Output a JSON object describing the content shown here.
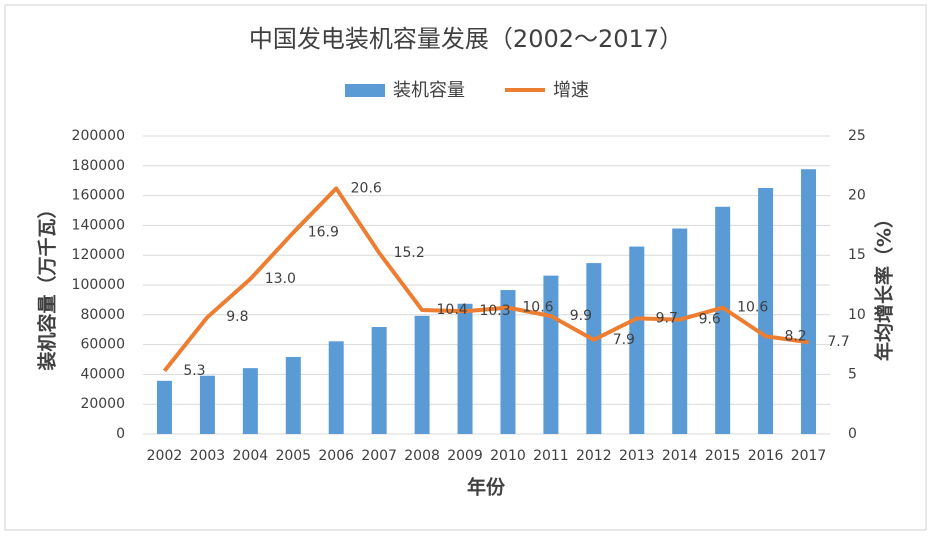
{
  "chart_data": {
    "type": "bar-line",
    "title": "中国发电装机容量发展（2002～2017）",
    "x_label": "年份",
    "y_label": "装机容量（万千瓦）",
    "y2_label": "年均增长率（%）",
    "categories": [
      "2002",
      "2003",
      "2004",
      "2005",
      "2006",
      "2007",
      "2008",
      "2009",
      "2010",
      "2011",
      "2012",
      "2013",
      "2014",
      "2015",
      "2016",
      "2017"
    ],
    "series": [
      {
        "name": "装机容量",
        "type": "bar",
        "color": "#5b9bd5",
        "values": [
          35700,
          39100,
          44200,
          51700,
          62200,
          71800,
          79300,
          87400,
          96600,
          106300,
          114700,
          125800,
          137900,
          152500,
          165100,
          177700
        ]
      },
      {
        "name": "增速",
        "type": "line",
        "axis": "y2",
        "color": "#ed7d31",
        "values": [
          5.3,
          9.8,
          13.0,
          16.9,
          20.6,
          15.2,
          10.4,
          10.3,
          10.6,
          9.9,
          7.9,
          9.7,
          9.6,
          10.6,
          8.2,
          7.7
        ],
        "value_labels": [
          "5.3",
          "9.8",
          "13.0",
          "16.9",
          "20.6",
          "15.2",
          "10.4",
          "10.3",
          "10.6",
          "9.9",
          "7.9",
          "9.7",
          "9.6",
          "10.6",
          "8.2",
          "7.7"
        ]
      }
    ],
    "ylim": [
      0,
      200000
    ],
    "yticks": [
      0,
      20000,
      40000,
      60000,
      80000,
      100000,
      120000,
      140000,
      160000,
      180000,
      200000
    ],
    "y2lim": [
      0,
      25
    ],
    "y2ticks": [
      0,
      5,
      10,
      15,
      20,
      25
    ],
    "grid": true,
    "legend": "top"
  }
}
